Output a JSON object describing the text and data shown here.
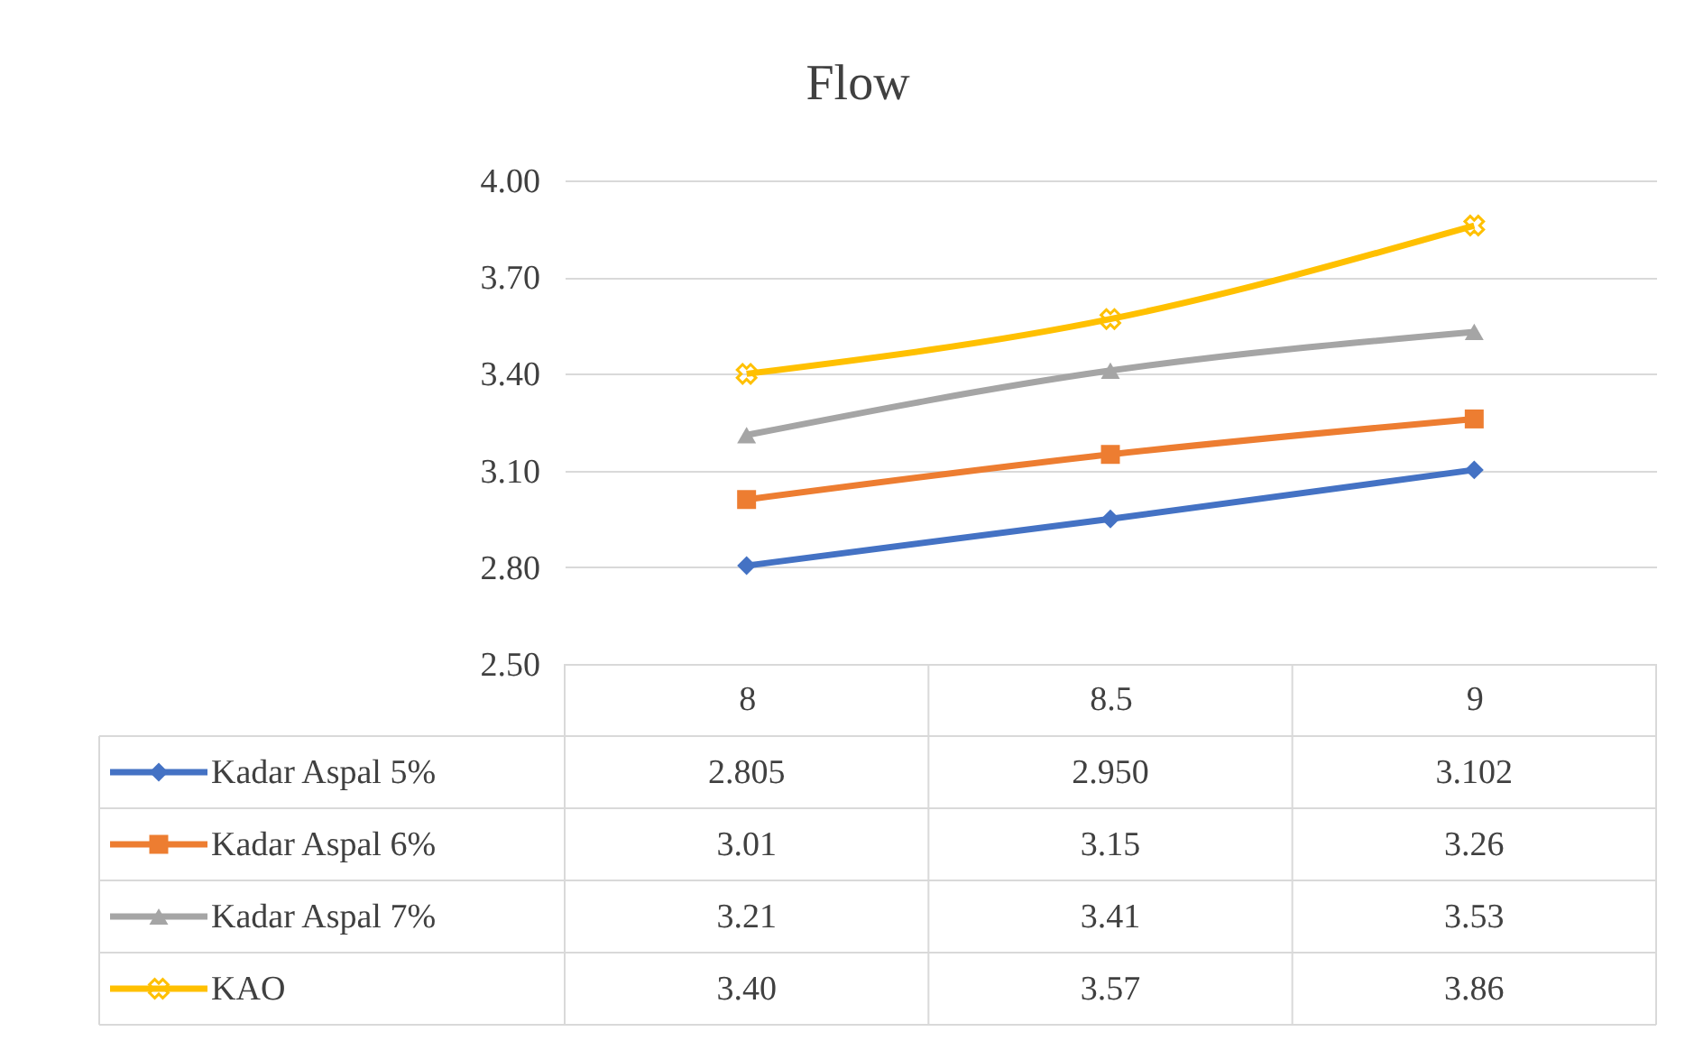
{
  "chart_data": {
    "type": "line",
    "title": "Flow",
    "categories": [
      "8",
      "8.5",
      "9"
    ],
    "series": [
      {
        "name": "Kadar Aspal 5%",
        "color": "#4472c4",
        "marker": "diamond",
        "values": [
          2.805,
          2.95,
          3.102
        ],
        "value_labels": [
          "2.805",
          "2.950",
          "3.102"
        ]
      },
      {
        "name": "Kadar Aspal 6%",
        "color": "#ed7d31",
        "marker": "square",
        "values": [
          3.01,
          3.15,
          3.26
        ],
        "value_labels": [
          "3.01",
          "3.15",
          "3.26"
        ]
      },
      {
        "name": "Kadar Aspal 7%",
        "color": "#a5a5a5",
        "marker": "triangle",
        "values": [
          3.21,
          3.41,
          3.53
        ],
        "value_labels": [
          "3.21",
          "3.41",
          "3.53"
        ]
      },
      {
        "name": "KAO",
        "color": "#ffc000",
        "marker": "cross",
        "values": [
          3.4,
          3.57,
          3.86
        ],
        "value_labels": [
          "3.40",
          "3.57",
          "3.86"
        ]
      }
    ],
    "ylim": [
      2.5,
      4.0
    ],
    "yticks": [
      {
        "value": 2.5,
        "label": "2.50"
      },
      {
        "value": 2.8,
        "label": "2.80"
      },
      {
        "value": 3.1,
        "label": "3.10"
      },
      {
        "value": 3.4,
        "label": "3.40"
      },
      {
        "value": 3.7,
        "label": "3.70"
      },
      {
        "value": 4.0,
        "label": "4.00"
      }
    ],
    "grid": "y",
    "legend": "bottom",
    "line_style": "solid"
  }
}
